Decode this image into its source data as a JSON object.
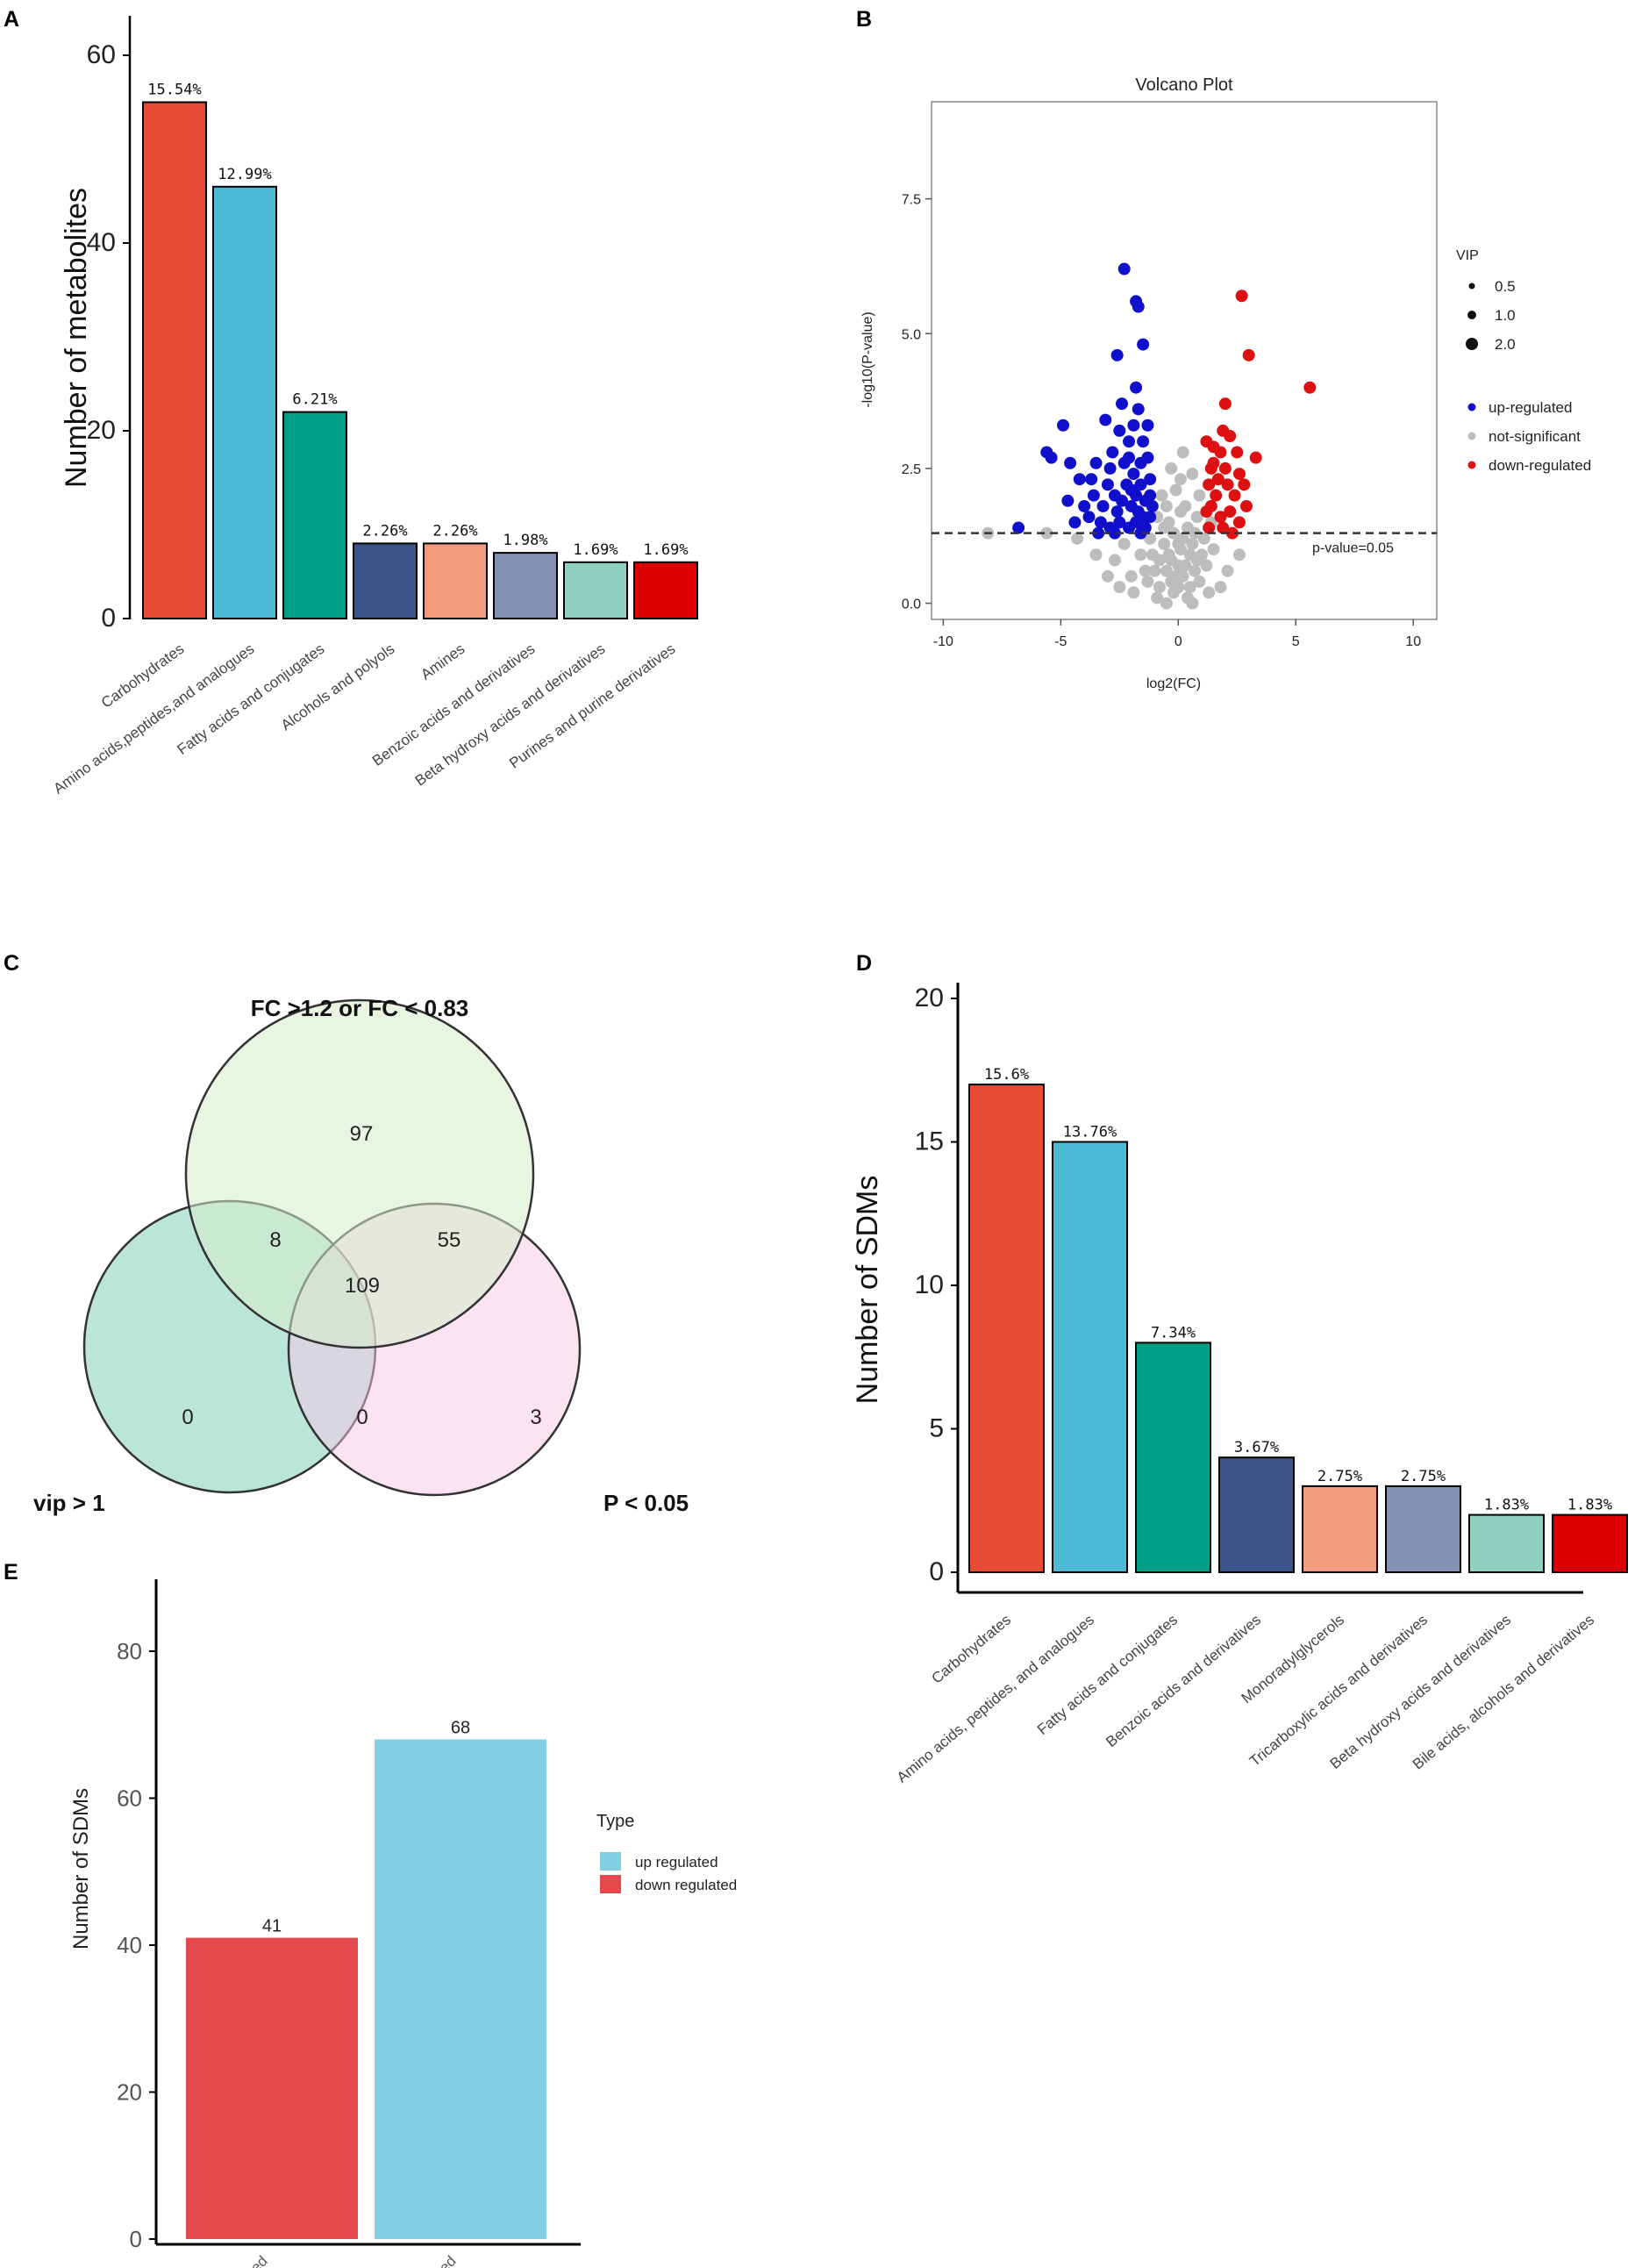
{
  "panels": {
    "a": "A",
    "b": "B",
    "c": "C",
    "d": "D",
    "e": "E"
  },
  "chart_data": [
    {
      "panel": "A",
      "type": "bar",
      "ylabel": "Number of metabolites",
      "ylim": [
        0,
        60
      ],
      "yticks": [
        "0",
        "20",
        "40",
        "60"
      ],
      "categories": [
        "Carbohydrates",
        "Amino acids,peptides,and analogues",
        "Fatty acids and conjugates",
        "Alcohols and polyols",
        "Amines",
        "Benzoic acids and derivatives",
        "Beta hydroxy acids and derivatives",
        "Purines and purine derivatives"
      ],
      "values": [
        55,
        46,
        22,
        8,
        8,
        7,
        6,
        6
      ],
      "labels": [
        "15.54%",
        "12.99%",
        "6.21%",
        "2.26%",
        "2.26%",
        "1.98%",
        "1.69%",
        "1.69%"
      ],
      "colors": [
        "#e64b35",
        "#4dbbd5",
        "#00a087",
        "#3c5488",
        "#f39b7f",
        "#8491b4",
        "#91d1c2",
        "#dc0000"
      ]
    },
    {
      "panel": "B",
      "type": "scatter",
      "title": "Volcano Plot",
      "xlabel": "log2(FC)",
      "ylabel": "-log10(P-value)",
      "xlim": [
        -10.5,
        11
      ],
      "ylim": [
        -0.3,
        9.3
      ],
      "xticks": [
        "-10",
        "-5",
        "0",
        "5",
        "10"
      ],
      "yticks": [
        "0.0",
        "2.5",
        "5.0",
        "7.5"
      ],
      "threshold": 1.3,
      "threshold_label": "p-value=0.05",
      "legend_size_title": "VIP",
      "legend_sizes": [
        "0.5",
        "1.0",
        "2.0"
      ],
      "legend_groups": [
        "up-regulated",
        "not-significant",
        "down-regulated"
      ],
      "group_colors": {
        "up": "#1010cc",
        "ns": "#bdbdbd",
        "down": "#dd1111"
      },
      "up": [
        [
          -2.3,
          6.2
        ],
        [
          -1.7,
          5.5
        ],
        [
          -1.8,
          5.6
        ],
        [
          -1.5,
          4.8
        ],
        [
          -2.6,
          4.6
        ],
        [
          -4.9,
          3.3
        ],
        [
          -3.1,
          3.4
        ],
        [
          -1.8,
          4.0
        ],
        [
          -5.6,
          2.8
        ],
        [
          -5.4,
          2.7
        ],
        [
          -4.6,
          2.6
        ],
        [
          -2.5,
          3.2
        ],
        [
          -2.1,
          3.0
        ],
        [
          -1.7,
          3.6
        ],
        [
          -1.5,
          3.0
        ],
        [
          -1.3,
          2.7
        ],
        [
          -2.9,
          2.5
        ],
        [
          -2.3,
          2.6
        ],
        [
          -1.9,
          2.4
        ],
        [
          -1.6,
          2.2
        ],
        [
          -4.2,
          2.3
        ],
        [
          -3.6,
          2.0
        ],
        [
          -3.2,
          1.8
        ],
        [
          -2.7,
          2.0
        ],
        [
          -2.4,
          1.9
        ],
        [
          -2.0,
          1.8
        ],
        [
          -1.7,
          1.7
        ],
        [
          -1.4,
          1.9
        ],
        [
          -1.2,
          1.6
        ],
        [
          -3.8,
          1.6
        ],
        [
          -3.3,
          1.5
        ],
        [
          -2.9,
          1.4
        ],
        [
          -2.5,
          1.5
        ],
        [
          -2.1,
          1.4
        ],
        [
          -1.8,
          1.5
        ],
        [
          -1.4,
          1.4
        ],
        [
          -6.8,
          1.4
        ],
        [
          -4.4,
          1.5
        ],
        [
          -2.8,
          2.8
        ],
        [
          -1.6,
          2.6
        ],
        [
          -3.5,
          2.6
        ],
        [
          -2.2,
          2.2
        ],
        [
          -1.9,
          3.3
        ],
        [
          -1.2,
          2.3
        ],
        [
          -4.0,
          1.8
        ],
        [
          -1.1,
          1.8
        ],
        [
          -2.6,
          1.7
        ],
        [
          -3.0,
          2.2
        ],
        [
          -2.0,
          2.1
        ],
        [
          -1.5,
          1.6
        ],
        [
          -3.7,
          2.3
        ],
        [
          -1.3,
          3.3
        ],
        [
          -2.4,
          3.7
        ],
        [
          -4.7,
          1.9
        ],
        [
          -3.4,
          1.3
        ],
        [
          -1.6,
          1.3
        ],
        [
          -2.7,
          1.3
        ],
        [
          -2.1,
          2.7
        ],
        [
          -1.8,
          2.0
        ],
        [
          -1.2,
          2.0
        ]
      ],
      "down": [
        [
          5.6,
          4.0
        ],
        [
          2.7,
          5.7
        ],
        [
          3.0,
          4.6
        ],
        [
          2.0,
          3.7
        ],
        [
          1.9,
          3.2
        ],
        [
          3.3,
          2.7
        ],
        [
          1.2,
          3.0
        ],
        [
          1.5,
          2.6
        ],
        [
          1.8,
          2.8
        ],
        [
          2.2,
          3.1
        ],
        [
          2.6,
          2.4
        ],
        [
          1.3,
          2.2
        ],
        [
          1.6,
          2.0
        ],
        [
          2.0,
          2.5
        ],
        [
          2.4,
          2.0
        ],
        [
          2.8,
          2.2
        ],
        [
          1.4,
          1.8
        ],
        [
          1.8,
          1.6
        ],
        [
          2.2,
          1.7
        ],
        [
          2.6,
          1.5
        ],
        [
          1.3,
          1.4
        ],
        [
          1.9,
          1.4
        ],
        [
          2.3,
          1.3
        ],
        [
          2.1,
          2.2
        ],
        [
          1.5,
          2.9
        ],
        [
          1.2,
          1.7
        ],
        [
          2.9,
          1.8
        ],
        [
          1.7,
          2.3
        ],
        [
          1.4,
          2.5
        ],
        [
          2.5,
          2.8
        ]
      ],
      "ns": [
        [
          -8.1,
          1.3
        ],
        [
          -5.6,
          1.3
        ],
        [
          -4.3,
          1.2
        ],
        [
          -0.3,
          0.8
        ],
        [
          0.2,
          0.5
        ],
        [
          -0.8,
          0.3
        ],
        [
          0.5,
          0.9
        ],
        [
          -0.5,
          0.6
        ],
        [
          0.9,
          0.4
        ],
        [
          -1.1,
          0.9
        ],
        [
          1.2,
          0.7
        ],
        [
          -0.2,
          0.2
        ],
        [
          0.1,
          1.0
        ],
        [
          -0.6,
          1.1
        ],
        [
          0.7,
          1.3
        ],
        [
          -1.4,
          0.6
        ],
        [
          1.5,
          1.0
        ],
        [
          -0.9,
          0.1
        ],
        [
          0.4,
          0.1
        ],
        [
          0.0,
          0.7
        ],
        [
          -0.4,
          1.5
        ],
        [
          0.3,
          1.8
        ],
        [
          -0.1,
          2.1
        ],
        [
          0.6,
          2.4
        ],
        [
          -0.7,
          2.0
        ],
        [
          0.2,
          2.8
        ],
        [
          -0.3,
          2.5
        ],
        [
          0.8,
          1.6
        ],
        [
          -1.2,
          1.2
        ],
        [
          1.1,
          1.2
        ],
        [
          -1.6,
          0.9
        ],
        [
          1.3,
          0.2
        ],
        [
          -2.0,
          0.5
        ],
        [
          2.1,
          0.6
        ],
        [
          -0.5,
          0.0
        ],
        [
          0.6,
          0.0
        ],
        [
          -1.9,
          0.2
        ],
        [
          1.8,
          0.3
        ],
        [
          0.0,
          0.3
        ],
        [
          -0.2,
          1.3
        ],
        [
          0.4,
          1.4
        ],
        [
          -2.3,
          1.1
        ],
        [
          -2.7,
          0.8
        ],
        [
          -0.9,
          1.6
        ],
        [
          0.9,
          2.0
        ],
        [
          -0.1,
          0.5
        ],
        [
          0.1,
          1.7
        ],
        [
          0.7,
          0.6
        ],
        [
          -1.3,
          0.4
        ],
        [
          -0.4,
          0.9
        ],
        [
          0.3,
          0.7
        ],
        [
          1.0,
          0.9
        ],
        [
          -0.8,
          0.8
        ],
        [
          0.5,
          0.3
        ],
        [
          -1.0,
          0.6
        ],
        [
          0.2,
          1.2
        ],
        [
          -0.6,
          1.4
        ],
        [
          0.0,
          1.1
        ],
        [
          -1.5,
          1.3
        ],
        [
          1.4,
          1.5
        ],
        [
          0.8,
          0.8
        ],
        [
          -0.3,
          0.4
        ],
        [
          -3.5,
          0.9
        ],
        [
          -3.0,
          0.5
        ],
        [
          -2.5,
          0.3
        ],
        [
          2.6,
          0.9
        ],
        [
          0.1,
          2.3
        ],
        [
          -0.5,
          1.8
        ],
        [
          0.6,
          1.1
        ],
        [
          -1.7,
          1.6
        ]
      ]
    },
    {
      "panel": "D",
      "type": "bar",
      "ylabel": "Number of SDMs",
      "ylim": [
        0,
        20
      ],
      "yticks": [
        "0",
        "5",
        "10",
        "15",
        "20"
      ],
      "categories": [
        "Carbohydrates",
        "Amino acids, peptides, and analogues",
        "Fatty acids and conjugates",
        "Benzoic acids and derivatives",
        "Monoradylglycerols",
        "Tricarboxylic acids and derivatives",
        "Beta hydroxy acids and derivatives",
        "Bile acids, alcohols and derivatives"
      ],
      "values": [
        17,
        15,
        8,
        4,
        3,
        3,
        2,
        2
      ],
      "labels": [
        "15.6%",
        "13.76%",
        "7.34%",
        "3.67%",
        "2.75%",
        "2.75%",
        "1.83%",
        "1.83%"
      ],
      "colors": [
        "#e64b35",
        "#4dbbd5",
        "#00a087",
        "#3c5488",
        "#f39b7f",
        "#8491b4",
        "#91d1c2",
        "#dc0000"
      ]
    },
    {
      "panel": "E",
      "type": "bar",
      "ylabel": "Number of SDMs",
      "ylim": [
        0,
        80
      ],
      "yticks": [
        "0",
        "20",
        "40",
        "60",
        "80"
      ],
      "categories": [
        "down regulated",
        "up regulated"
      ],
      "values": [
        41,
        68
      ],
      "labels": [
        "41",
        "68"
      ],
      "colors": [
        "#e5494e",
        "#84cfe2"
      ],
      "legend_title": "Type",
      "legend_items": [
        "up regulated",
        "down regulated"
      ],
      "legend_colors": [
        "#84cfe2",
        "#e5494e"
      ]
    }
  ],
  "venn": {
    "set_fc": "FC >1.2 or FC < 0.83",
    "set_vip": "vip > 1",
    "set_p": "P < 0.05",
    "only_fc": "97",
    "fc_vip": "8",
    "fc_p": "55",
    "all_three": "109",
    "only_vip": "0",
    "vip_p": "0",
    "only_p": "3",
    "colors": {
      "fc": "#d4ecc8",
      "vip": "#8fd3c0",
      "p": "#f8c8e6"
    }
  }
}
